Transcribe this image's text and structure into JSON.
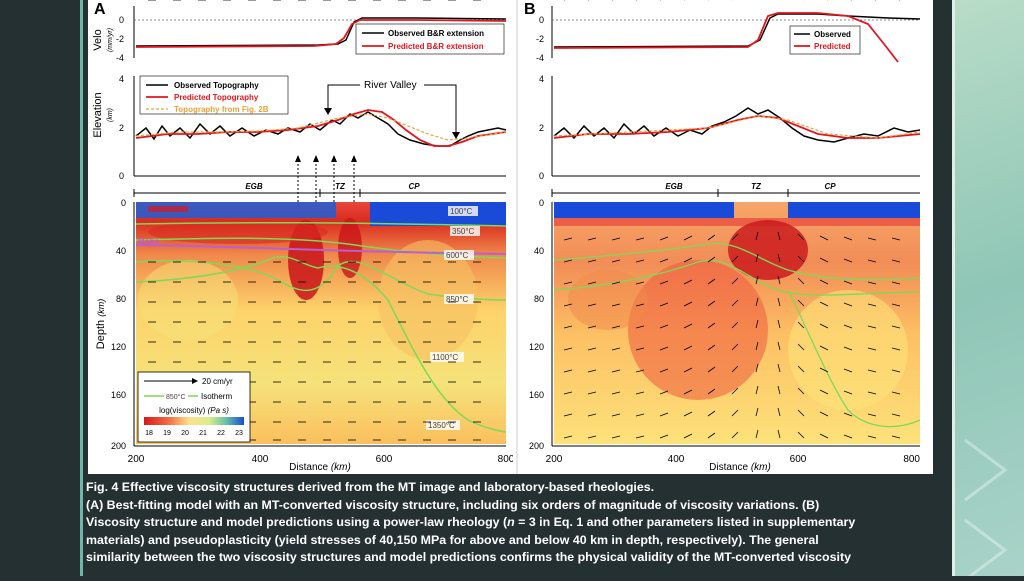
{
  "caption": {
    "line1": "Fig. 4 Effective viscosity structures derived from the MT image and laboratory-based rheologies.",
    "line2": "(A) Best-fitting model with an MT-converted viscosity structure, including six orders of magnitude of viscosity variations. (B)",
    "line3_a": "Viscosity structure and model predictions using a power-law rheology (",
    "line3_n": "n",
    "line3_b": " = 3 in Eq. 1 and other parameters listed in supplementary",
    "line4": "materials) and pseudoplasticity (yield stresses of 40,150 MPa for above and below 40 km in depth, respectively). The general",
    "line5": "similarity between the two viscosity structures and model predictions confirms the physical validity of the MT-converted viscosity"
  },
  "panelA": {
    "letter": "A",
    "velo_label": "Velo",
    "velo_units": "(mm/yr)",
    "velo_ticks": [
      "0",
      "-2",
      "-4"
    ],
    "velo_legend": [
      "Observed B&R extension",
      "Predicted B&R extension"
    ],
    "elev_label": "Elevation",
    "elev_units": "(km)",
    "elev_ticks": [
      "4",
      "2",
      "0"
    ],
    "elev_legend": [
      "Observed Topography",
      "Predicted Topography",
      "Topography from Fig. 2B"
    ],
    "river_label": "River Valley",
    "regions": [
      "EGB",
      "TZ",
      "CP"
    ],
    "moho": "Moho",
    "isotherms": [
      "100°C",
      "350°C",
      "600°C",
      "850°C",
      "1100°C",
      "1350°C"
    ],
    "depth_label": "Depth",
    "depth_units": "(km)",
    "depth_ticks": [
      "0",
      "40",
      "80",
      "120",
      "160",
      "200"
    ],
    "scale_label": "20 cm/yr",
    "iso_legend_temp": "850°C",
    "iso_legend_label": "Isotherm",
    "visc_label": "log(viscosity)",
    "visc_units": "(Pa s)",
    "visc_ticks": [
      "18",
      "19",
      "20",
      "21",
      "22",
      "23"
    ],
    "x_ticks": [
      "200",
      "400",
      "600",
      "800"
    ],
    "x_label": "Distance",
    "x_units": "(km)"
  },
  "panelB": {
    "letter": "B",
    "velo_ticks": [
      "0",
      "-2",
      "-4"
    ],
    "velo_legend": [
      "Observed",
      "Predicted"
    ],
    "elev_ticks": [
      "4",
      "2",
      "0"
    ],
    "regions": [
      "EGB",
      "TZ",
      "CP"
    ],
    "depth_ticks": [
      "0",
      "40",
      "80",
      "120",
      "160",
      "200"
    ],
    "x_ticks": [
      "200",
      "400",
      "600",
      "800"
    ],
    "x_label": "Distance",
    "x_units": "(km)"
  },
  "colors": {
    "observed": "#000000",
    "predicted": "#e3151d",
    "fig2b": "#e8a33a",
    "isotherm": "#7ed957",
    "moho": "#b95fd1",
    "viscosity_scale": [
      "#d7191c",
      "#f46d43",
      "#fdae61",
      "#fee08b",
      "#d9ef8b",
      "#1a4bd8"
    ]
  }
}
